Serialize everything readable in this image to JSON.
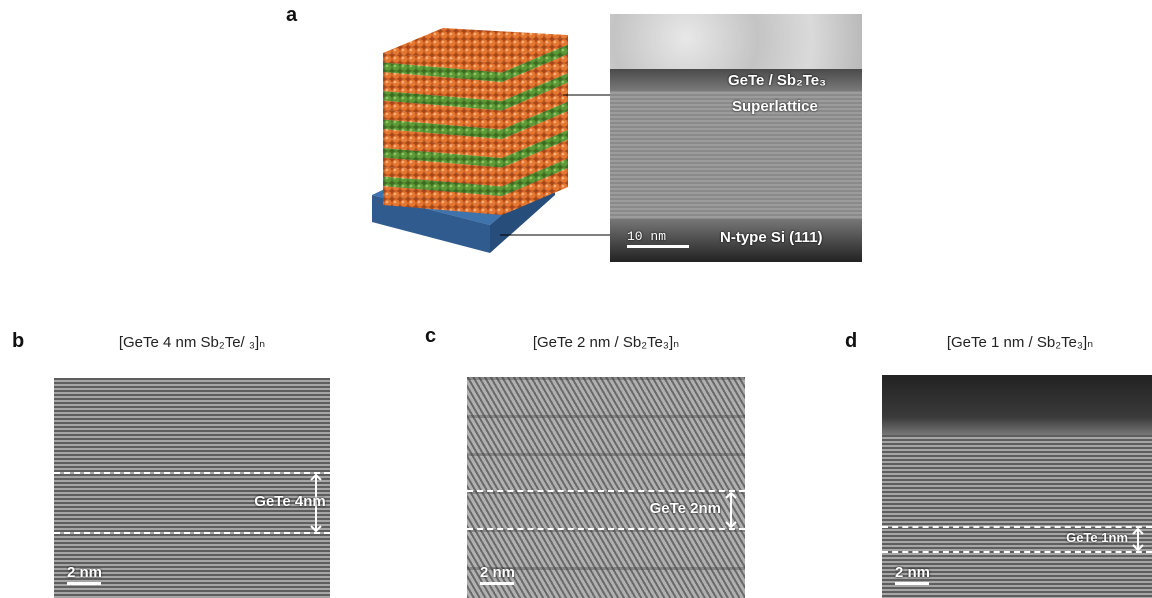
{
  "panel_a": {
    "label": "a",
    "material": "GeTe / Sb₂Te₃",
    "structure": "Superlattice",
    "scale_bar": "10 nm",
    "substrate": "N-type Si (111)"
  },
  "panels": [
    {
      "label": "b",
      "title": "[GeTe 4 nm Sb₂Te/ ₃]ₙ",
      "thickness": "GeTe 4nm",
      "scale_bar": "2 nm"
    },
    {
      "label": "c",
      "title": "[GeTe 2 nm / Sb₂Te₃]ₙ",
      "thickness": "GeTe 2nm",
      "scale_bar": "2 nm"
    },
    {
      "label": "d",
      "title": "[GeTe 1 nm / Sb₂Te₃]ₙ",
      "thickness": "GeTe 1nm",
      "scale_bar": "2 nm"
    }
  ]
}
